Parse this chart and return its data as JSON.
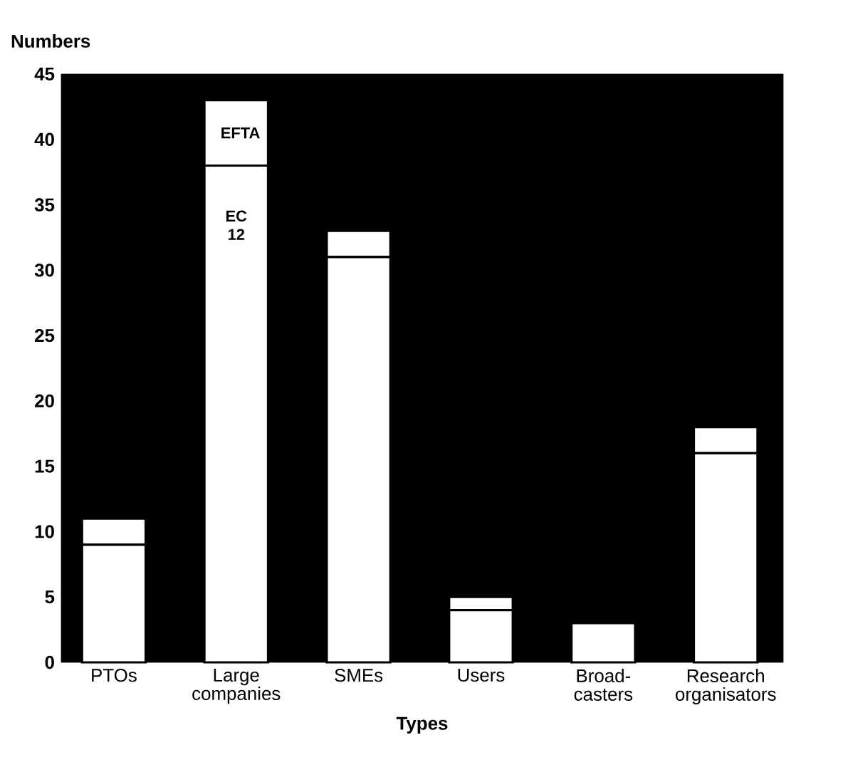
{
  "chart_data": {
    "type": "bar",
    "stacked": true,
    "xlabel": "Types",
    "ylabel": "Numbers",
    "legend": false,
    "categories": [
      "PTOs",
      "Large companies",
      "SMEs",
      "Users",
      "Broad-casters",
      "Research organisators"
    ],
    "series": [
      {
        "name": "EC 12",
        "color": "#ffffff",
        "values": [
          9,
          38,
          31,
          4,
          3,
          16
        ]
      },
      {
        "name": "EFTA",
        "color": "#ffffff",
        "values": [
          2,
          5,
          2,
          1,
          0,
          2
        ]
      }
    ],
    "ylim": [
      0,
      45
    ],
    "yticks": [
      0,
      5,
      10,
      15,
      20,
      25,
      30,
      35,
      40,
      45
    ]
  }
}
